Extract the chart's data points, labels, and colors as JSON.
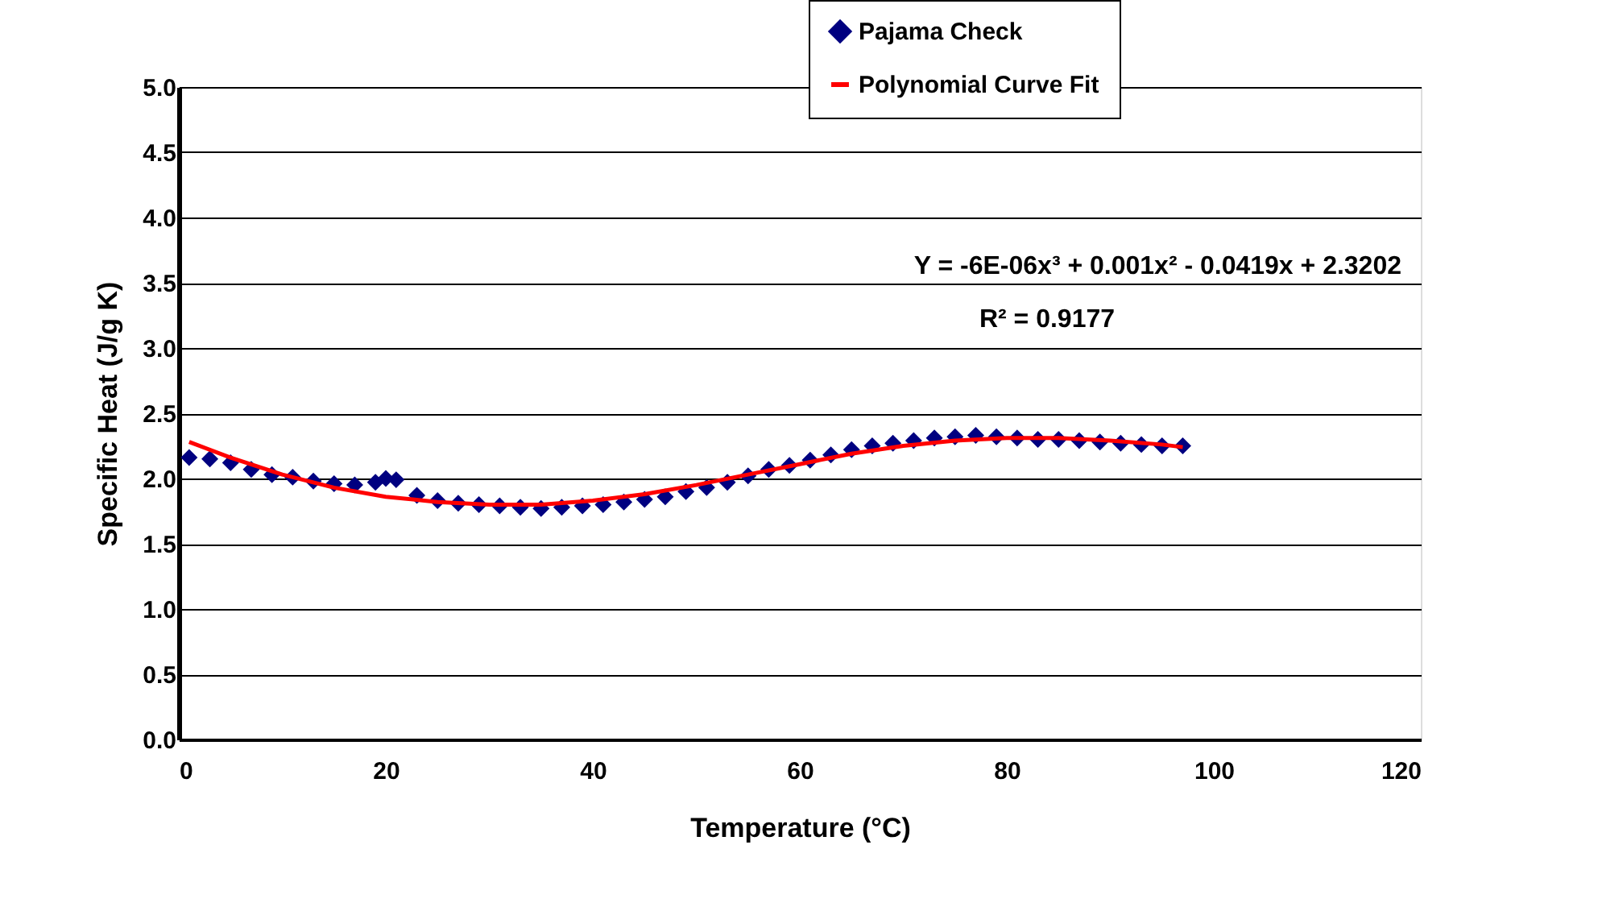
{
  "chart_data": {
    "type": "scatter",
    "xlabel": "Temperature (°C)",
    "ylabel": "Specific Heat (J/g K)",
    "xlim": [
      0,
      120
    ],
    "xticks": [
      0,
      20,
      40,
      60,
      80,
      100,
      120
    ],
    "ylim": [
      0,
      5
    ],
    "yticks": [
      {
        "value": 0,
        "label": "0.0"
      },
      {
        "value": 0.5,
        "label": "0.5"
      },
      {
        "value": 1,
        "label": "1.0"
      },
      {
        "value": 1.5,
        "label": "1.5"
      },
      {
        "value": 2,
        "label": "2.0"
      },
      {
        "value": 2.5,
        "label": "2.5"
      },
      {
        "value": 3,
        "label": "3.0"
      },
      {
        "value": 3.5,
        "label": "3.5"
      },
      {
        "value": 4,
        "label": "4.0"
      },
      {
        "value": 4.5,
        "label": "4.5"
      },
      {
        "value": 5,
        "label": "5.0"
      }
    ],
    "grid": "y",
    "legend": "top right",
    "series": [
      {
        "name": "Pajama Check",
        "marker": "diamond",
        "color": "#000080",
        "x": [
          1,
          3,
          5,
          7,
          9,
          11,
          13,
          15,
          17,
          19,
          20,
          21,
          23,
          25,
          27,
          29,
          31,
          33,
          35,
          37,
          39,
          41,
          43,
          45,
          47,
          49,
          51,
          53,
          55,
          57,
          59,
          61,
          63,
          65,
          67,
          69,
          71,
          73,
          75,
          77,
          79,
          81,
          83,
          85,
          87,
          89,
          91,
          93,
          95,
          97
        ],
        "values": [
          2.16,
          2.15,
          2.12,
          2.07,
          2.03,
          2.01,
          1.98,
          1.96,
          1.95,
          1.97,
          2.0,
          1.99,
          1.87,
          1.83,
          1.81,
          1.8,
          1.79,
          1.78,
          1.77,
          1.78,
          1.79,
          1.8,
          1.82,
          1.84,
          1.86,
          1.9,
          1.93,
          1.97,
          2.02,
          2.07,
          2.1,
          2.14,
          2.18,
          2.22,
          2.25,
          2.27,
          2.29,
          2.31,
          2.32,
          2.33,
          2.32,
          2.31,
          2.3,
          2.3,
          2.29,
          2.28,
          2.27,
          2.26,
          2.25,
          2.25
        ]
      },
      {
        "name": "Polynomial Curve Fit",
        "type": "line",
        "line_style": "solid",
        "color": "#ff0000",
        "x": [
          1,
          5,
          10,
          15,
          20,
          25,
          30,
          35,
          40,
          45,
          50,
          55,
          60,
          65,
          70,
          75,
          80,
          85,
          90,
          95,
          97
        ],
        "values": [
          2.28,
          2.16,
          2.03,
          1.93,
          1.86,
          1.82,
          1.8,
          1.8,
          1.83,
          1.88,
          1.95,
          2.03,
          2.11,
          2.19,
          2.25,
          2.29,
          2.31,
          2.31,
          2.29,
          2.26,
          2.24
        ]
      }
    ],
    "annotations": [
      "Y = -6E-06x³ + 0.001x² - 0.0419x + 2.3202",
      "R² = 0.9177"
    ]
  }
}
